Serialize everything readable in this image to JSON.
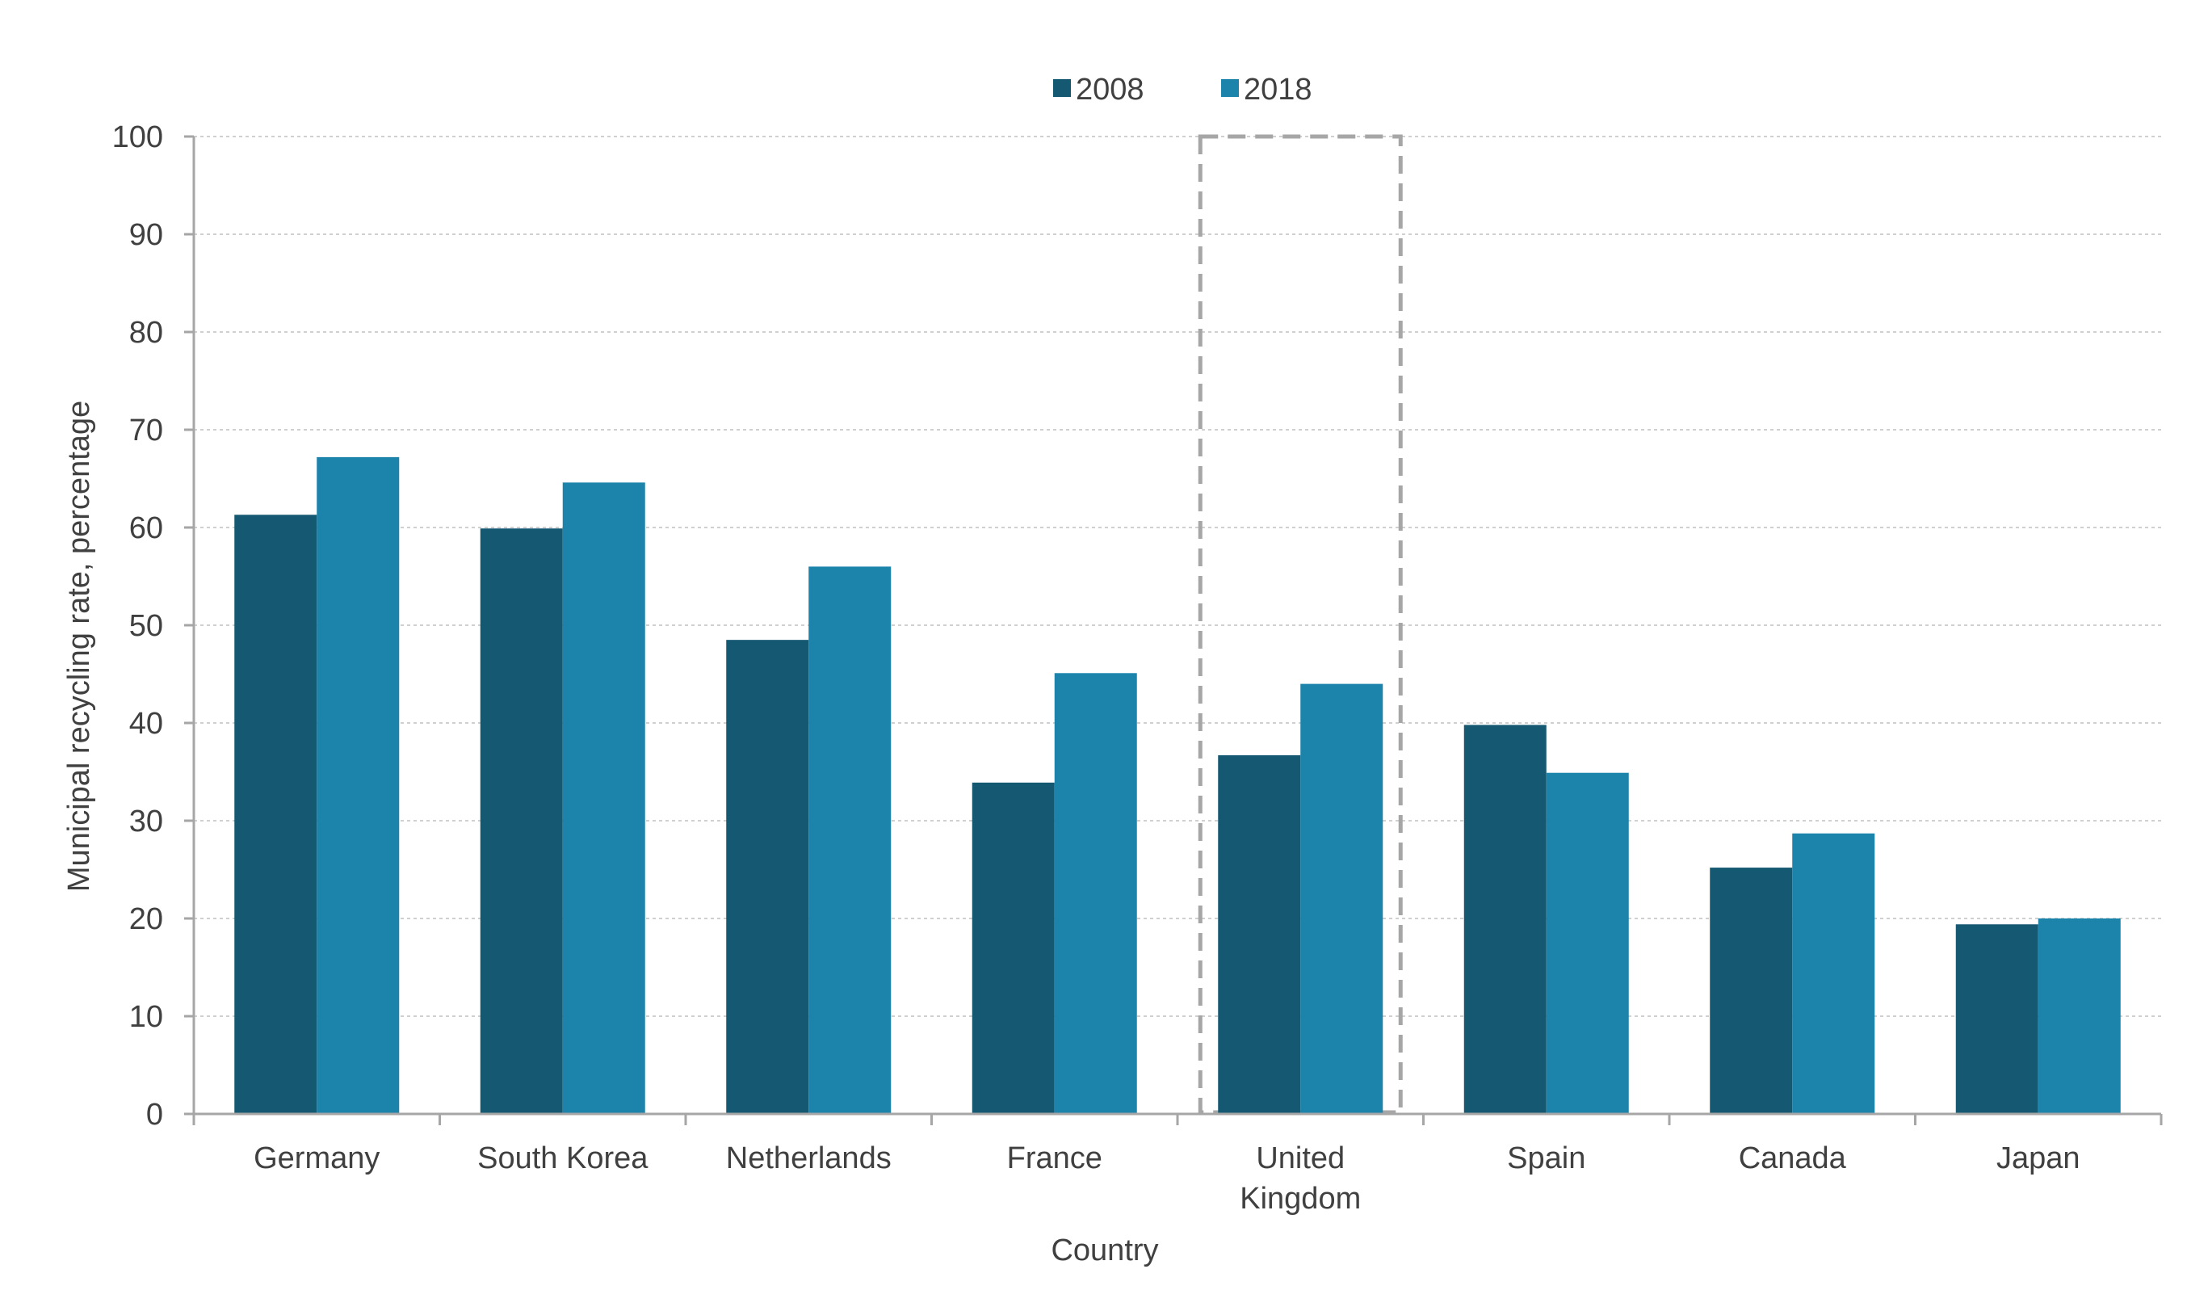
{
  "chart_data": {
    "type": "bar",
    "xlabel": "Country",
    "ylabel": "Municipal recycling rate, percentage",
    "ylim": [
      0,
      100
    ],
    "yticks": [
      0,
      10,
      20,
      30,
      40,
      50,
      60,
      70,
      80,
      90,
      100
    ],
    "categories": [
      "Germany",
      "South Korea",
      "Netherlands",
      "France",
      "United Kingdom",
      "Spain",
      "Canada",
      "Japan"
    ],
    "category_lines": [
      [
        "Germany"
      ],
      [
        "South Korea"
      ],
      [
        "Netherlands"
      ],
      [
        "France"
      ],
      [
        "United",
        "Kingdom"
      ],
      [
        "Spain"
      ],
      [
        "Canada"
      ],
      [
        "Japan"
      ]
    ],
    "series": [
      {
        "name": "2008",
        "color": "#155872",
        "values": [
          61.3,
          59.9,
          48.5,
          33.9,
          36.7,
          39.8,
          25.2,
          19.4
        ]
      },
      {
        "name": "2018",
        "color": "#1c83ab",
        "values": [
          67.2,
          64.6,
          56.0,
          45.1,
          44.0,
          34.9,
          28.7,
          20.0
        ]
      }
    ],
    "highlighted_category": "United Kingdom",
    "legend_position": "top-center",
    "grid": true
  }
}
